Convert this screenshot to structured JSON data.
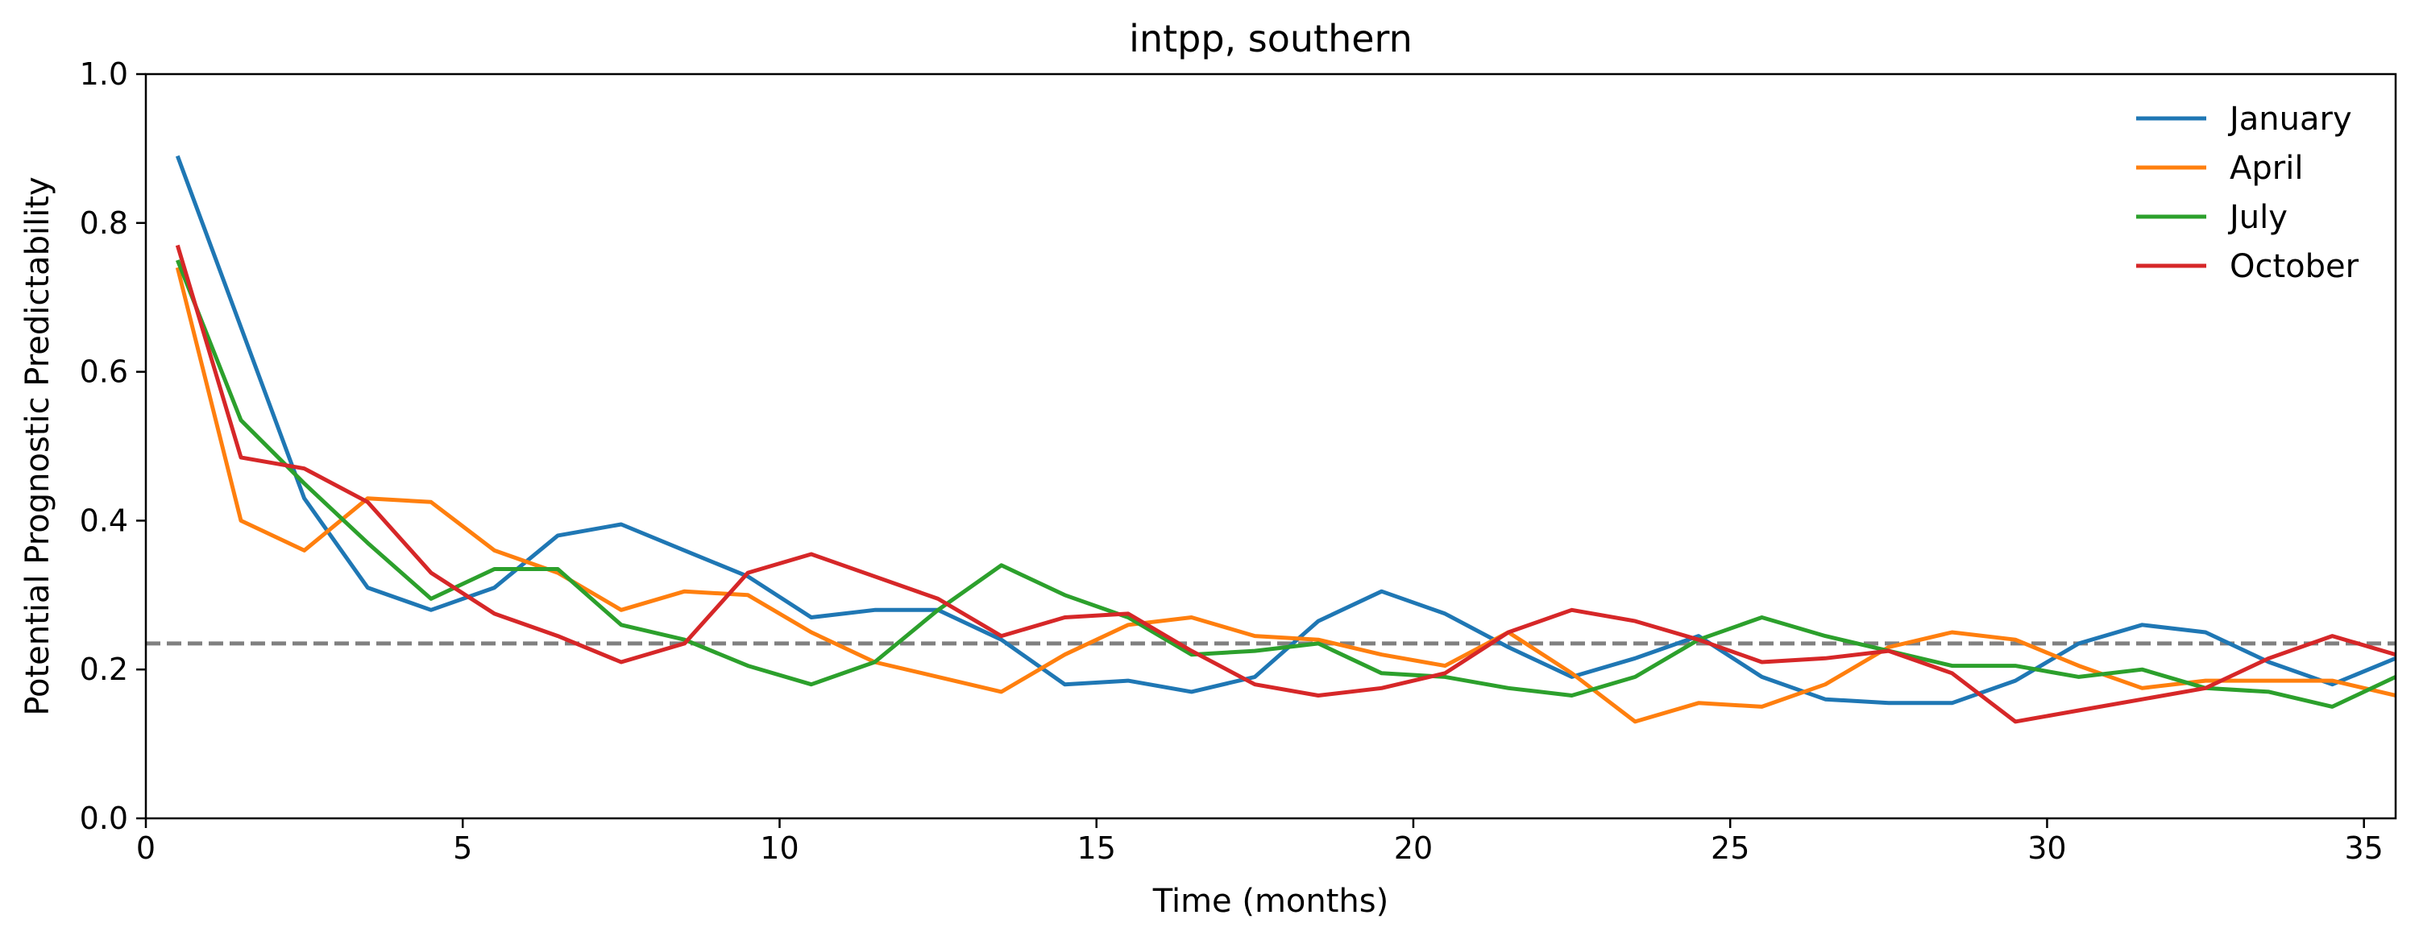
{
  "chart_data": {
    "type": "line",
    "title": "intpp, southern",
    "xlabel": "Time (months)",
    "ylabel": "Potential Prognostic Predictability",
    "xlim": [
      0,
      35.5
    ],
    "ylim": [
      0.0,
      1.0
    ],
    "xticks": [
      0,
      5,
      10,
      15,
      20,
      25,
      30,
      35
    ],
    "yticks": [
      0.0,
      0.2,
      0.4,
      0.6,
      0.8,
      1.0
    ],
    "xtick_labels": [
      "0",
      "5",
      "10",
      "15",
      "20",
      "25",
      "30",
      "35"
    ],
    "ytick_labels": [
      "0.0",
      "0.2",
      "0.4",
      "0.6",
      "0.8",
      "1.0"
    ],
    "grid": false,
    "legend_position": "top-right",
    "x": [
      0.5,
      1.5,
      2.5,
      3.5,
      4.5,
      5.5,
      6.5,
      7.5,
      8.5,
      9.5,
      10.5,
      11.5,
      12.5,
      13.5,
      14.5,
      15.5,
      16.5,
      17.5,
      18.5,
      19.5,
      20.5,
      21.5,
      22.5,
      23.5,
      24.5,
      25.5,
      26.5,
      27.5,
      28.5,
      29.5,
      30.5,
      31.5,
      32.5,
      33.5,
      34.5,
      35.5
    ],
    "series": [
      {
        "name": "January",
        "color": "#1f77b4",
        "values": [
          0.89,
          0.66,
          0.43,
          0.31,
          0.28,
          0.31,
          0.38,
          0.395,
          0.36,
          0.325,
          0.27,
          0.28,
          0.28,
          0.24,
          0.18,
          0.185,
          0.17,
          0.19,
          0.265,
          0.305,
          0.275,
          0.23,
          0.19,
          0.215,
          0.245,
          0.19,
          0.16,
          0.155,
          0.155,
          0.185,
          0.235,
          0.26,
          0.25,
          0.21,
          0.18,
          0.215
        ]
      },
      {
        "name": "April",
        "color": "#ff7f0e",
        "values": [
          0.74,
          0.4,
          0.36,
          0.43,
          0.425,
          0.36,
          0.33,
          0.28,
          0.305,
          0.3,
          0.25,
          0.21,
          0.19,
          0.17,
          0.22,
          0.26,
          0.27,
          0.245,
          0.24,
          0.22,
          0.205,
          0.25,
          0.195,
          0.13,
          0.155,
          0.15,
          0.18,
          0.23,
          0.25,
          0.24,
          0.205,
          0.175,
          0.185,
          0.185,
          0.185,
          0.165
        ]
      },
      {
        "name": "July",
        "color": "#2ca02c",
        "values": [
          0.75,
          0.535,
          0.45,
          0.37,
          0.295,
          0.335,
          0.335,
          0.26,
          0.24,
          0.205,
          0.18,
          0.21,
          0.28,
          0.34,
          0.3,
          0.27,
          0.22,
          0.225,
          0.235,
          0.195,
          0.19,
          0.175,
          0.165,
          0.19,
          0.24,
          0.27,
          0.245,
          0.225,
          0.205,
          0.205,
          0.19,
          0.2,
          0.175,
          0.17,
          0.15,
          0.19
        ]
      },
      {
        "name": "October",
        "color": "#d62728",
        "values": [
          0.77,
          0.485,
          0.47,
          0.425,
          0.33,
          0.275,
          0.245,
          0.21,
          0.235,
          0.33,
          0.355,
          0.325,
          0.295,
          0.245,
          0.27,
          0.275,
          0.225,
          0.18,
          0.165,
          0.175,
          0.195,
          0.25,
          0.28,
          0.265,
          0.24,
          0.21,
          0.215,
          0.225,
          0.195,
          0.13,
          0.145,
          0.16,
          0.175,
          0.215,
          0.245,
          0.22
        ]
      }
    ],
    "reference_line": {
      "y": 0.235,
      "color": "#808080",
      "style": "dashed"
    }
  }
}
